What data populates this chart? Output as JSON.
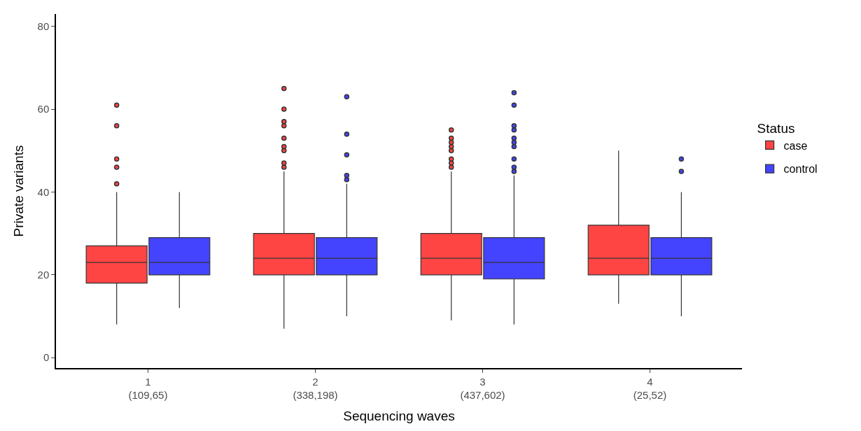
{
  "chart_data": {
    "type": "box",
    "xlabel": "Sequencing waves",
    "ylabel": "Private variants",
    "legend_title": "Status",
    "legend": "right",
    "categories": [
      "1\n(109,65)",
      "2\n(338,198)",
      "3\n(437,602)",
      "4\n(25,52)"
    ],
    "ylim": [
      -2.5,
      83
    ],
    "yticks": [
      0,
      20,
      40,
      60,
      80
    ],
    "series": [
      {
        "name": "case",
        "color": "#ff4444",
        "boxes": [
          {
            "low": 8,
            "q1": 18,
            "median": 23,
            "q3": 27,
            "high": 40,
            "outliers": [
              42,
              46,
              48,
              56,
              61
            ]
          },
          {
            "low": 7,
            "q1": 20,
            "median": 24,
            "q3": 30,
            "high": 45,
            "outliers": [
              46,
              47,
              50,
              51,
              53,
              56,
              57,
              60,
              65
            ]
          },
          {
            "low": 9,
            "q1": 20,
            "median": 24,
            "q3": 30,
            "high": 45,
            "outliers": [
              46,
              47,
              48,
              50,
              51,
              52,
              53,
              55
            ]
          },
          {
            "low": 13,
            "q1": 20,
            "median": 24,
            "q3": 32,
            "high": 50
          }
        ]
      },
      {
        "name": "control",
        "color": "#4444ff",
        "boxes": [
          {
            "low": 12,
            "q1": 20,
            "median": 23,
            "q3": 29,
            "high": 40
          },
          {
            "low": 10,
            "q1": 20,
            "median": 24,
            "q3": 29,
            "high": 42,
            "outliers": [
              43,
              44,
              49,
              54,
              63
            ]
          },
          {
            "low": 8,
            "q1": 19,
            "median": 23,
            "q3": 29,
            "high": 44,
            "outliers": [
              45,
              46,
              48,
              51,
              52,
              53,
              55,
              56,
              61,
              64
            ]
          },
          {
            "low": 10,
            "q1": 20,
            "median": 24,
            "q3": 29,
            "high": 40,
            "outliers": [
              45,
              48
            ]
          }
        ]
      }
    ]
  }
}
